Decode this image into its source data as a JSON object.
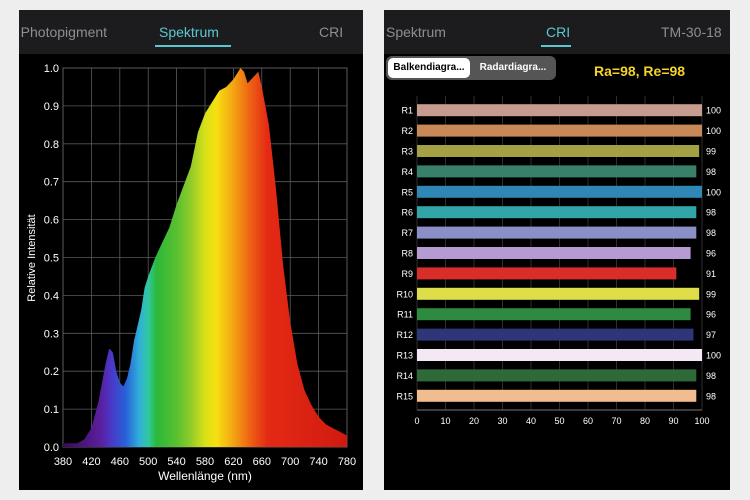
{
  "left": {
    "tabs": [
      {
        "label": "n Photopigment",
        "active": false
      },
      {
        "label": "Spektrum",
        "active": true
      },
      {
        "label": "CRI",
        "active": false
      }
    ],
    "chart_data": {
      "type": "area",
      "title": "",
      "xlabel": "Wellenlänge (nm)",
      "ylabel": "Relative Intensität",
      "xlim": [
        380,
        780
      ],
      "ylim": [
        0,
        1.0
      ],
      "grid": true,
      "x_ticks": [
        "380",
        "420",
        "460",
        "500",
        "540",
        "580",
        "620",
        "660",
        "700",
        "740",
        "780"
      ],
      "y_ticks": [
        "0.0",
        "0.1",
        "0.2",
        "0.3",
        "0.4",
        "0.5",
        "0.6",
        "0.7",
        "0.8",
        "0.9",
        "1.0"
      ],
      "series": [
        {
          "x": [
            380,
            390,
            400,
            410,
            420,
            430,
            440,
            445,
            450,
            455,
            460,
            465,
            470,
            475,
            480,
            490,
            495,
            500,
            510,
            520,
            530,
            540,
            550,
            560,
            570,
            580,
            590,
            600,
            610,
            620,
            630,
            635,
            640,
            650,
            655,
            660,
            670,
            680,
            690,
            700,
            710,
            720,
            730,
            740,
            750,
            760,
            770,
            780
          ],
          "y": [
            0.01,
            0.01,
            0.01,
            0.02,
            0.05,
            0.12,
            0.22,
            0.26,
            0.25,
            0.2,
            0.17,
            0.16,
            0.18,
            0.22,
            0.28,
            0.36,
            0.42,
            0.45,
            0.5,
            0.54,
            0.58,
            0.64,
            0.69,
            0.74,
            0.83,
            0.88,
            0.91,
            0.94,
            0.95,
            0.97,
            1.0,
            0.99,
            0.96,
            0.98,
            0.99,
            0.95,
            0.85,
            0.68,
            0.48,
            0.33,
            0.22,
            0.15,
            0.11,
            0.08,
            0.06,
            0.05,
            0.04,
            0.03
          ]
        }
      ]
    }
  },
  "right": {
    "tabs": [
      {
        "label": "Spektrum",
        "active": false
      },
      {
        "label": "CRI",
        "active": true
      },
      {
        "label": "TM-30-18",
        "active": false
      }
    ],
    "segments": [
      "Balkendiagra...",
      "Radardiagra..."
    ],
    "summary": "Ra=98, Re=98",
    "chart_data": {
      "type": "bar",
      "orientation": "horizontal",
      "categories": [
        "R1",
        "R2",
        "R3",
        "R4",
        "R5",
        "R6",
        "R7",
        "R8",
        "R9",
        "R10",
        "R11",
        "R12",
        "R13",
        "R14",
        "R15"
      ],
      "values": [
        100,
        100,
        99,
        98,
        100,
        98,
        98,
        96,
        91,
        99,
        96,
        97,
        100,
        98,
        98
      ],
      "value_labels": [
        "100",
        "100",
        "99",
        "98",
        "100",
        "98",
        "98",
        "96",
        "91",
        "99",
        "96",
        "97",
        "100",
        "98",
        "98"
      ],
      "colors": [
        "#c79b8f",
        "#c78a56",
        "#a4a044",
        "#38806a",
        "#2f87b5",
        "#30a6a8",
        "#8a90c6",
        "#b69ad2",
        "#d82d28",
        "#dede4a",
        "#2e8a3e",
        "#2e3578",
        "#f3e8f3",
        "#2e6a38",
        "#f0bc90"
      ],
      "xlim": [
        0,
        100
      ],
      "x_ticks": [
        "0",
        "10",
        "20",
        "30",
        "40",
        "50",
        "60",
        "70",
        "80",
        "90",
        "100"
      ]
    }
  }
}
